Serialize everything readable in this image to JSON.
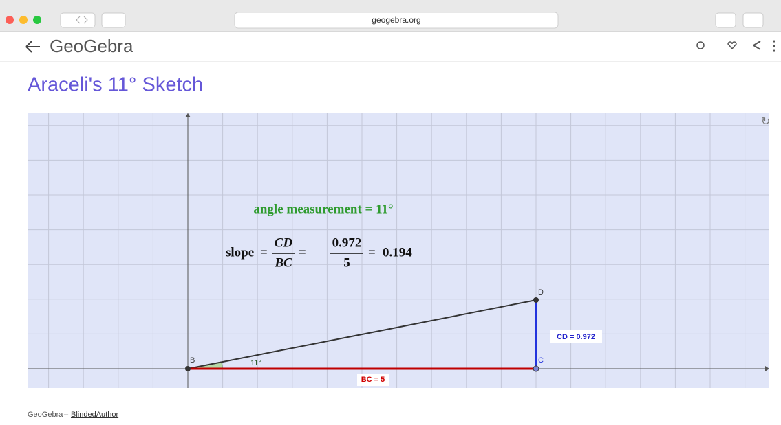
{
  "browser": {
    "address": "geogebra.org"
  },
  "header": {
    "logo": "GeoGebra"
  },
  "page": {
    "title": "Araceli's 11° Sketch"
  },
  "applet": {
    "angle_text": "angle measurement = 11°",
    "slope": {
      "lhs": "slope",
      "equals": "=",
      "fraction1": {
        "num": "CD",
        "den": "BC"
      },
      "fraction2": {
        "num": "0.972",
        "den": "5"
      },
      "result": "0.194"
    },
    "points": [
      "B",
      "C",
      "D"
    ],
    "angle_label": "11°",
    "cd_label": "CD = 0.972",
    "bc_label": "BC = 5"
  },
  "footer": {
    "brand": "GeoGebra",
    "separator": "–",
    "author": "BlindedAuthor"
  }
}
